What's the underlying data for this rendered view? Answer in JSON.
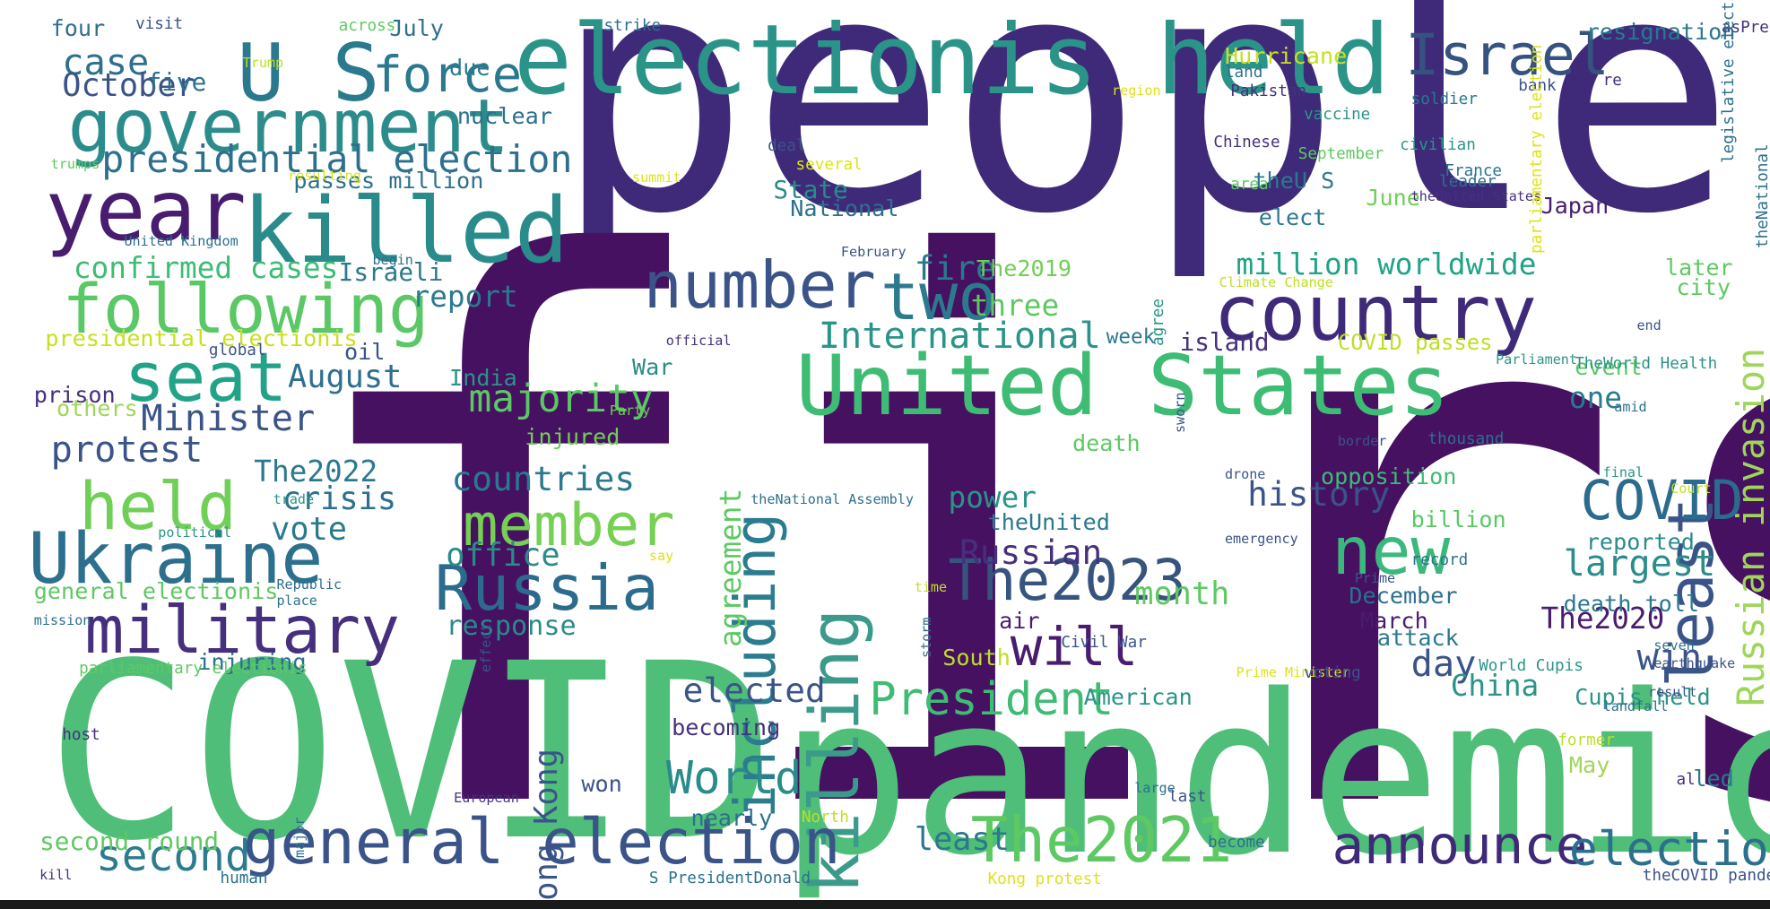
{
  "words": [
    {
      "text": "people",
      "color": "#3f2a79"
    },
    {
      "text": "first",
      "color": "#461161"
    },
    {
      "text": "COVID",
      "color": "#4fbe79"
    },
    {
      "text": "pandemic",
      "color": "#4fbe79"
    },
    {
      "text": "electionis held",
      "color": "#2b9488"
    },
    {
      "text": "U S",
      "color": "#2a798e"
    },
    {
      "text": "force",
      "color": "#2a798e"
    },
    {
      "text": "government",
      "color": "#2c8c8c"
    },
    {
      "text": "year",
      "color": "#481c6e"
    },
    {
      "text": "killed",
      "color": "#2a8b8b"
    },
    {
      "text": "following",
      "color": "#5ac864"
    },
    {
      "text": "Israel",
      "color": "#36537f"
    },
    {
      "text": "country",
      "color": "#3f2a79"
    },
    {
      "text": "United States",
      "color": "#3ebc74"
    },
    {
      "text": "number",
      "color": "#3a5489"
    },
    {
      "text": "two",
      "color": "#2c7a8e"
    },
    {
      "text": "including",
      "color": "#2b7c8e"
    },
    {
      "text": "killing",
      "color": "#3b9a89"
    },
    {
      "text": "least",
      "color": "#3a5489"
    },
    {
      "text": "Russian invasion",
      "color": "#9fd65a"
    },
    {
      "text": "seat",
      "color": "#20a386"
    },
    {
      "text": "held",
      "color": "#6fcf57"
    },
    {
      "text": "Ukraine",
      "color": "#2c708e"
    },
    {
      "text": "military",
      "color": "#46307e"
    },
    {
      "text": "Russia",
      "color": "#2b6b8e"
    },
    {
      "text": "The2023",
      "color": "#36547d"
    },
    {
      "text": "new",
      "color": "#3bb87b"
    },
    {
      "text": "COVID",
      "color": "#2b6b8e"
    },
    {
      "text": "general election",
      "color": "#3a5489"
    },
    {
      "text": "The2021",
      "color": "#5ec962"
    },
    {
      "text": "announce",
      "color": "#3f2a79"
    },
    {
      "text": "election",
      "color": "#2c708e"
    },
    {
      "text": "member",
      "color": "#75d054"
    },
    {
      "text": "Hong Kong",
      "color": "#3a5489"
    },
    {
      "text": "will",
      "color": "#481c6e"
    },
    {
      "text": "President",
      "color": "#3ebc74"
    },
    {
      "text": "World",
      "color": "#2a8b8b"
    },
    {
      "text": "second",
      "color": "#2b7c8e"
    },
    {
      "text": "presidential election",
      "color": "#2c708e"
    },
    {
      "text": "case",
      "color": "#2c708e"
    },
    {
      "text": "October",
      "color": "#3a5489"
    },
    {
      "text": "five",
      "color": "#2c708e"
    },
    {
      "text": "confirmed cases",
      "color": "#3ebc74"
    },
    {
      "text": "Israeli",
      "color": "#2a798e"
    },
    {
      "text": "report",
      "color": "#2a798e"
    },
    {
      "text": "International",
      "color": "#2b9488"
    },
    {
      "text": "three",
      "color": "#5ec962"
    },
    {
      "text": "fire",
      "color": "#2a798e"
    },
    {
      "text": "The2019",
      "color": "#6fcf57"
    },
    {
      "text": "million worldwide",
      "color": "#20a386"
    },
    {
      "text": "August",
      "color": "#2c708e"
    },
    {
      "text": "Minister",
      "color": "#3a5489"
    },
    {
      "text": "majority",
      "color": "#5ac864"
    },
    {
      "text": "protest",
      "color": "#3a5489"
    },
    {
      "text": "The2022",
      "color": "#2a798e"
    },
    {
      "text": "crisis",
      "color": "#2c708e"
    },
    {
      "text": "vote",
      "color": "#2a798e"
    },
    {
      "text": "countries",
      "color": "#2a798e"
    },
    {
      "text": "office",
      "color": "#2a8b8b"
    },
    {
      "text": "response",
      "color": "#2a8b8b"
    },
    {
      "text": "Russian",
      "color": "#46307e"
    },
    {
      "text": "history",
      "color": "#3a5489"
    },
    {
      "text": "power",
      "color": "#2b9488"
    },
    {
      "text": "month",
      "color": "#5ec962"
    },
    {
      "text": "largest",
      "color": "#2c8c8c"
    },
    {
      "text": "day",
      "color": "#3a5489"
    },
    {
      "text": "win",
      "color": "#3a5489"
    },
    {
      "text": "The2020",
      "color": "#481c6e"
    },
    {
      "text": "elected",
      "color": "#3a5489"
    },
    {
      "text": "China",
      "color": "#2b9488"
    },
    {
      "text": "agreement",
      "color": "#5ec962"
    },
    {
      "text": "State",
      "color": "#2a8b8b"
    },
    {
      "text": "National",
      "color": "#2c708e"
    },
    {
      "text": "theU S",
      "color": "#2a798e"
    },
    {
      "text": "elect",
      "color": "#2a798e"
    },
    {
      "text": "June",
      "color": "#6fcf57"
    },
    {
      "text": "Japan",
      "color": "#481c6e"
    },
    {
      "text": "Hurricane",
      "color": "#c8e020"
    },
    {
      "text": "resignation",
      "color": "#2a798e"
    },
    {
      "text": "island",
      "color": "#46307e"
    },
    {
      "text": "week",
      "color": "#2a798e"
    },
    {
      "text": "COVID passes",
      "color": "#bddf26"
    },
    {
      "text": "event",
      "color": "#5ec962"
    },
    {
      "text": "one",
      "color": "#2a798e"
    },
    {
      "text": "opposition",
      "color": "#3ebc74"
    },
    {
      "text": "reported",
      "color": "#2a8b8b"
    },
    {
      "text": "billion",
      "color": "#5ac864"
    },
    {
      "text": "death toll",
      "color": "#2a798e"
    },
    {
      "text": "December",
      "color": "#2c708e"
    },
    {
      "text": "March",
      "color": "#481c6e"
    },
    {
      "text": "attack",
      "color": "#2a798e"
    },
    {
      "text": "death",
      "color": "#5ec962"
    },
    {
      "text": "theUnited",
      "color": "#2a798e"
    },
    {
      "text": "Cupis held",
      "color": "#2b9488"
    },
    {
      "text": "American",
      "color": "#2b9488"
    },
    {
      "text": "least",
      "color": "#2a798e"
    },
    {
      "text": "nearly",
      "color": "#2c708e"
    },
    {
      "text": "won",
      "color": "#3a5489"
    },
    {
      "text": "becoming",
      "color": "#46307e"
    },
    {
      "text": "second round",
      "color": "#5ec962"
    },
    {
      "text": "injuring",
      "color": "#2c708e"
    },
    {
      "text": "general electionis",
      "color": "#5ec962"
    },
    {
      "text": "others",
      "color": "#9fd65a"
    },
    {
      "text": "prison",
      "color": "#46307e"
    },
    {
      "text": "presidential electionis",
      "color": "#c8e020"
    },
    {
      "text": "oil",
      "color": "#3a5489"
    },
    {
      "text": "India",
      "color": "#2b9488"
    },
    {
      "text": "War",
      "color": "#2a8b8b"
    },
    {
      "text": "injured",
      "color": "#6fcf57"
    },
    {
      "text": "due",
      "color": "#2a798e"
    },
    {
      "text": "nuclear",
      "color": "#2c708e"
    },
    {
      "text": "passes million",
      "color": "#2c708e"
    },
    {
      "text": "July",
      "color": "#2c708e"
    },
    {
      "text": "four",
      "color": "#2c708e"
    },
    {
      "text": "led",
      "color": "#2a798e"
    },
    {
      "text": "May",
      "color": "#9fd65a"
    },
    {
      "text": "city",
      "color": "#5ec962"
    },
    {
      "text": "later",
      "color": "#5ec962"
    },
    {
      "text": "South",
      "color": "#bddf26"
    },
    {
      "text": "air",
      "color": "#481c6e"
    },
    {
      "text": "visit",
      "color": "#3a5489"
    },
    {
      "text": "across",
      "color": "#5ec962"
    },
    {
      "text": "strike",
      "color": "#2c708e"
    },
    {
      "text": "Trump",
      "color": "#bddf26"
    },
    {
      "text": "region",
      "color": "#dde318"
    },
    {
      "text": "land",
      "color": "#2c708e"
    },
    {
      "text": "Pakistan",
      "color": "#46307e"
    },
    {
      "text": "vaccine",
      "color": "#2b9488"
    },
    {
      "text": "soldier",
      "color": "#2a798e"
    },
    {
      "text": "bank",
      "color": "#3a5489"
    },
    {
      "text": "re",
      "color": "#46307e"
    },
    {
      "text": "asPresident",
      "color": "#46307e"
    },
    {
      "text": "deal",
      "color": "#3a5489"
    },
    {
      "text": "several",
      "color": "#dde318"
    },
    {
      "text": "Chinese",
      "color": "#46307e"
    },
    {
      "text": "September",
      "color": "#5ec962"
    },
    {
      "text": "civilian",
      "color": "#2b9488"
    },
    {
      "text": "France",
      "color": "#2c708e"
    },
    {
      "text": "leader",
      "color": "#2c708e"
    },
    {
      "text": "area",
      "color": "#5ec962"
    },
    {
      "text": "trumps",
      "color": "#5ec962"
    },
    {
      "text": "resulting",
      "color": "#dde318"
    },
    {
      "text": "summit",
      "color": "#dde318"
    },
    {
      "text": "theUnited States",
      "color": "#46307e"
    },
    {
      "text": "United Kingdom",
      "color": "#2c708e"
    },
    {
      "text": "begin",
      "color": "#2c708e"
    },
    {
      "text": "February",
      "color": "#3a5489"
    },
    {
      "text": "Climate Change",
      "color": "#bddf26"
    },
    {
      "text": "official",
      "color": "#46307e"
    },
    {
      "text": "global",
      "color": "#3a5489"
    },
    {
      "text": "end",
      "color": "#3a5489"
    },
    {
      "text": "Parliament",
      "color": "#2b9488"
    },
    {
      "text": "TheWorld Health",
      "color": "#2b9488"
    },
    {
      "text": "amid",
      "color": "#2c708e"
    },
    {
      "text": "Party",
      "color": "#6fcf57"
    },
    {
      "text": "thousand",
      "color": "#2c708e"
    },
    {
      "text": "border",
      "color": "#3a5489"
    },
    {
      "text": "final",
      "color": "#2b9488"
    },
    {
      "text": "Court",
      "color": "#bddf26"
    },
    {
      "text": "trade",
      "color": "#2b9488"
    },
    {
      "text": "theNational Assembly",
      "color": "#2c708e"
    },
    {
      "text": "drone",
      "color": "#3a5489"
    },
    {
      "text": "emergency",
      "color": "#3a5489"
    },
    {
      "text": "political",
      "color": "#2b9488"
    },
    {
      "text": "say",
      "color": "#dde318"
    },
    {
      "text": "record",
      "color": "#2c708e"
    },
    {
      "text": "Prime",
      "color": "#3a5489"
    },
    {
      "text": "Republic",
      "color": "#2c708e"
    },
    {
      "text": "place",
      "color": "#2c708e"
    },
    {
      "text": "time",
      "color": "#bddf26"
    },
    {
      "text": "mission",
      "color": "#2c708e"
    },
    {
      "text": "Civil War",
      "color": "#3a5489"
    },
    {
      "text": "Prime Minister",
      "color": "#dde318"
    },
    {
      "text": "voting",
      "color": "#3a5489"
    },
    {
      "text": "seven",
      "color": "#2c708e"
    },
    {
      "text": "earthquake",
      "color": "#3a5489"
    },
    {
      "text": "result",
      "color": "#3a5489"
    },
    {
      "text": "World Cupis",
      "color": "#2b9488"
    },
    {
      "text": "parliamentary electionis",
      "color": "#5ec962"
    },
    {
      "text": "landfall",
      "color": "#2c708e"
    },
    {
      "text": "host",
      "color": "#46307e"
    },
    {
      "text": "former",
      "color": "#bddf26"
    },
    {
      "text": "al",
      "color": "#46307e"
    },
    {
      "text": "large",
      "color": "#2c708e"
    },
    {
      "text": "last",
      "color": "#3a5489"
    },
    {
      "text": "European",
      "color": "#46307e"
    },
    {
      "text": "become",
      "color": "#2c708e"
    },
    {
      "text": "North",
      "color": "#bddf26"
    },
    {
      "text": "kill",
      "color": "#46307e"
    },
    {
      "text": "human",
      "color": "#2c708e"
    },
    {
      "text": "S PresidentDonald",
      "color": "#2c708e"
    },
    {
      "text": "Kong protest",
      "color": "#dde318"
    },
    {
      "text": "theCOVID pandemic",
      "color": "#3a5489"
    },
    {
      "text": "legislative electionis",
      "color": "#2c708e"
    },
    {
      "text": "theNational",
      "color": "#2c708e"
    },
    {
      "text": "parliamentary election",
      "color": "#dde318"
    },
    {
      "text": "agree",
      "color": "#2b9488"
    },
    {
      "text": "sworn",
      "color": "#3a5489"
    },
    {
      "text": "storm",
      "color": "#2c708e"
    },
    {
      "text": "effect",
      "color": "#3a5489"
    },
    {
      "text": "major",
      "color": "#2c708e"
    }
  ]
}
